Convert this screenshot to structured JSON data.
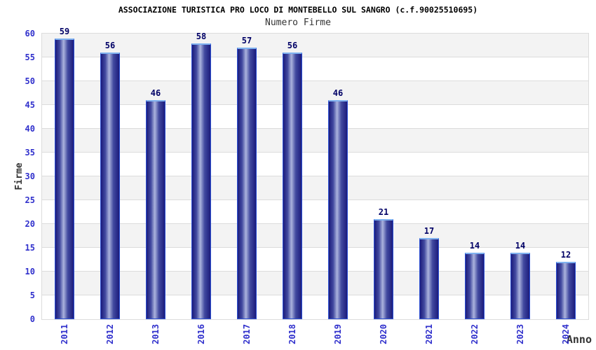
{
  "header": {
    "title": "ASSOCIAZIONE TURISTICA PRO LOCO DI MONTEBELLO SUL SANGRO (c.f.90025510695)",
    "subtitle": "Numero Firme"
  },
  "chart_data": {
    "type": "bar",
    "title": "ASSOCIAZIONE TURISTICA PRO LOCO DI MONTEBELLO SUL SANGRO (c.f.90025510695)",
    "subtitle": "Numero Firme",
    "categories": [
      "2011",
      "2012",
      "2013",
      "2016",
      "2017",
      "2018",
      "2019",
      "2020",
      "2021",
      "2022",
      "2023",
      "2024"
    ],
    "values": [
      59,
      56,
      46,
      58,
      57,
      56,
      46,
      21,
      17,
      14,
      14,
      12
    ],
    "xlabel": "Anno",
    "ylabel": "Firme",
    "ylim": [
      0,
      60
    ],
    "yticks": [
      0,
      5,
      10,
      15,
      20,
      25,
      30,
      35,
      40,
      45,
      50,
      55,
      60
    ],
    "grid": true,
    "legend": false,
    "band_fill": true,
    "value_labels": true,
    "colors": {
      "bar_dark": "#1c1c7c",
      "bar_mid": "#424aa0",
      "bar_highlight": "#abb3dd",
      "bar_border": "#2b4fd4",
      "bar_border_top": "#7fb2f0",
      "tick_label": "#3030cc",
      "value_label": "#000066",
      "gridline": "#dcdcdc",
      "band": "#f3f3f3",
      "title": "#000000",
      "axis_title": "#333333"
    }
  }
}
